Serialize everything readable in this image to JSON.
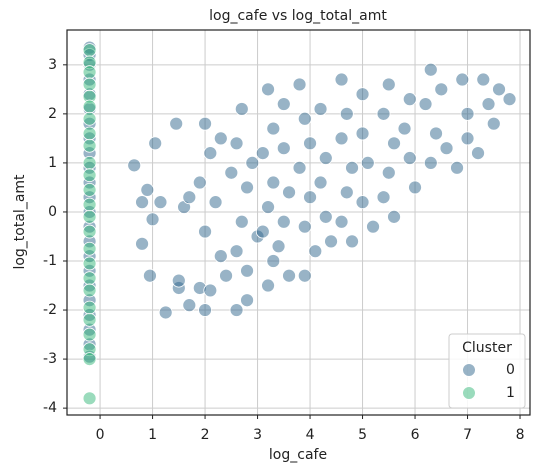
{
  "chart_data": {
    "type": "scatter",
    "title": "log_cafe vs log_total_amt",
    "x_label": "log_cafe",
    "y_label": "log_total_amt",
    "xlim": [
      -0.63,
      8.19
    ],
    "ylim": [
      -4.14,
      3.71
    ],
    "xticks": [
      0,
      1,
      2,
      3,
      4,
      5,
      6,
      7,
      8
    ],
    "yticks": [
      -4,
      -3,
      -2,
      -1,
      0,
      1,
      2,
      3
    ],
    "grid": true,
    "legend_title": "Cluster",
    "legend_position": "lower right",
    "series": [
      {
        "name": "0",
        "color": "#31688e",
        "x": [
          -0.2,
          -0.2,
          -0.2,
          -0.2,
          -0.2,
          -0.2,
          -0.2,
          -0.2,
          -0.2,
          -0.2,
          -0.2,
          -0.2,
          -0.2,
          -0.2,
          -0.2,
          -0.2,
          -0.2,
          -0.2,
          -0.2,
          -0.2,
          -0.2,
          -0.2,
          -0.2,
          0.65,
          0.9,
          0.8,
          1.0,
          0.8,
          0.95,
          1.25,
          1.05,
          1.15,
          1.45,
          1.5,
          1.5,
          1.7,
          1.9,
          2.0,
          2.6,
          2.8,
          1.6,
          1.7,
          2.0,
          2.1,
          1.9,
          2.2,
          2.0,
          2.3,
          2.1,
          2.4,
          2.3,
          2.5,
          2.7,
          2.6,
          2.8,
          2.7,
          2.6,
          2.8,
          2.9,
          3.0,
          3.2,
          3.3,
          3.1,
          3.3,
          3.2,
          3.1,
          3.3,
          3.2,
          3.5,
          3.5,
          3.6,
          3.5,
          3.4,
          3.6,
          3.8,
          3.9,
          4.0,
          3.8,
          4.0,
          3.9,
          4.1,
          3.9,
          4.2,
          4.3,
          4.2,
          4.3,
          4.4,
          4.6,
          4.7,
          4.6,
          4.8,
          4.7,
          4.6,
          4.8,
          5.0,
          5.0,
          5.1,
          5.0,
          5.2,
          5.5,
          5.4,
          5.6,
          5.5,
          5.4,
          5.6,
          5.9,
          5.8,
          5.9,
          6.0,
          6.3,
          6.2,
          6.4,
          6.3,
          6.5,
          6.6,
          6.8,
          6.9,
          7.0,
          7.0,
          7.3,
          7.4,
          7.5,
          7.6,
          7.8,
          7.2
        ],
        "values": [
          3.35,
          3.2,
          3.0,
          2.7,
          2.4,
          2.1,
          1.8,
          1.5,
          1.2,
          0.9,
          0.6,
          0.3,
          0,
          -0.3,
          -0.6,
          -0.9,
          -1.2,
          -1.5,
          -1.8,
          -2.1,
          -2.4,
          -2.7,
          -2.95,
          0.95,
          0.45,
          0.2,
          -0.15,
          -0.65,
          -1.3,
          -2.05,
          1.4,
          0.2,
          1.8,
          -1.55,
          -1.4,
          -1.9,
          -1.55,
          -2.0,
          -2.0,
          -1.8,
          0.1,
          0.3,
          1.8,
          1.2,
          0.6,
          0.2,
          -0.4,
          -0.9,
          -1.6,
          -1.3,
          1.5,
          0.8,
          2.1,
          1.4,
          0.5,
          -0.2,
          -0.8,
          -1.2,
          1.0,
          -0.5,
          2.5,
          1.7,
          1.2,
          0.6,
          0.1,
          -0.4,
          -1.0,
          -1.5,
          2.2,
          1.3,
          0.4,
          -0.2,
          -0.7,
          -1.3,
          2.6,
          1.9,
          1.4,
          0.9,
          0.3,
          -0.3,
          -0.8,
          -1.3,
          2.1,
          1.1,
          0.6,
          -0.1,
          -0.6,
          2.7,
          2.0,
          1.5,
          0.9,
          0.4,
          -0.2,
          -0.6,
          2.4,
          1.6,
          1.0,
          0.2,
          -0.3,
          2.6,
          2.0,
          1.4,
          0.8,
          0.3,
          -0.1,
          2.3,
          1.7,
          1.1,
          0.5,
          2.9,
          2.2,
          1.6,
          1.0,
          2.5,
          1.3,
          0.9,
          2.7,
          2.0,
          1.5,
          2.7,
          2.2,
          1.8,
          2.5,
          2.3,
          1.2
        ]
      },
      {
        "name": "1",
        "color": "#35b779",
        "x": [
          -0.2,
          -0.2,
          -0.2,
          -0.2,
          -0.2,
          -0.2,
          -0.2,
          -0.2,
          -0.2,
          -0.2,
          -0.2,
          -0.2,
          -0.2,
          -0.2,
          -0.2,
          -0.2,
          -0.2,
          -0.2,
          -0.2,
          -0.2,
          -0.2,
          -0.2,
          -0.2,
          -0.2,
          -0.2
        ],
        "values": [
          3.3,
          3.05,
          2.85,
          2.6,
          2.35,
          2.15,
          1.9,
          1.6,
          1.35,
          1.0,
          0.75,
          0.45,
          0.15,
          -0.1,
          -0.4,
          -0.75,
          -1.05,
          -1.35,
          -1.6,
          -1.95,
          -2.2,
          -2.5,
          -2.8,
          -3.0,
          -3.8
        ]
      }
    ]
  }
}
